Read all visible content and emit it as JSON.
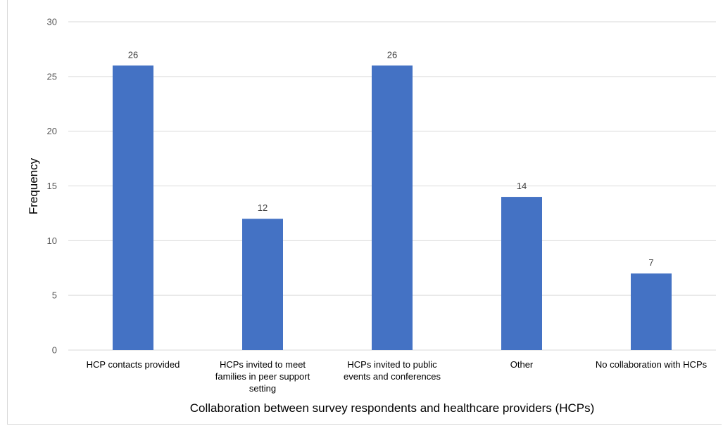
{
  "chart_data": {
    "type": "bar",
    "title": "",
    "xlabel": "Collaboration between survey respondents and healthcare providers (HCPs)",
    "ylabel": "Frequency",
    "categories": [
      "HCP contacts provided",
      "HCPs invited to meet families in peer support setting",
      "HCPs invited to public events and conferences",
      "Other",
      "No collaboration with HCPs"
    ],
    "category_lines": [
      [
        "HCP contacts provided"
      ],
      [
        "HCPs invited to meet",
        "families in peer support",
        "setting"
      ],
      [
        "HCPs invited to public",
        "events and conferences"
      ],
      [
        "Other"
      ],
      [
        "No collaboration with HCPs"
      ]
    ],
    "values": [
      26,
      12,
      26,
      14,
      7
    ],
    "ylim": [
      0,
      30
    ],
    "yticks": [
      0,
      5,
      10,
      15,
      20,
      25,
      30
    ],
    "grid": true,
    "legend": "none",
    "bar_color": "#4472C4",
    "grid_color": "#d9d9d9",
    "data_labels": true
  }
}
